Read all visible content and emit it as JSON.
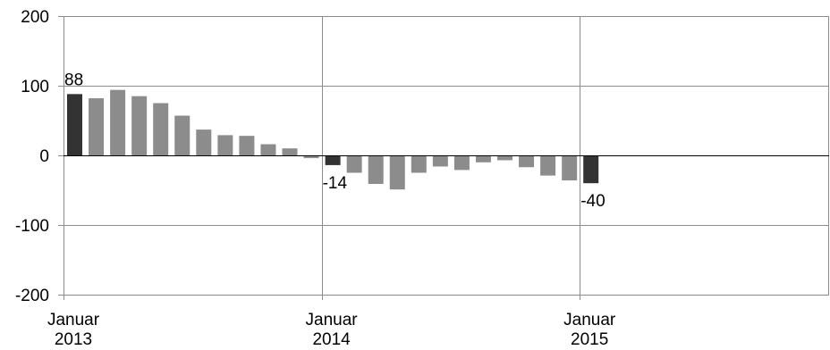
{
  "chart_data": {
    "type": "bar",
    "ylim": [
      -200,
      200
    ],
    "yticks": [
      -200,
      -100,
      0,
      100,
      200
    ],
    "ytick_labels": [
      "-200",
      "-100",
      "0",
      "100",
      "200"
    ],
    "x_tick_labels": [
      {
        "index": 0,
        "lines": [
          "Januar",
          "2013"
        ]
      },
      {
        "index": 12,
        "lines": [
          "Januar",
          "2014"
        ]
      },
      {
        "index": 24,
        "lines": [
          "Januar",
          "2015"
        ]
      }
    ],
    "values": [
      88,
      82,
      94,
      85,
      75,
      57,
      37,
      29,
      28,
      16,
      10,
      -4,
      -14,
      -25,
      -41,
      -49,
      -25,
      -16,
      -21,
      -10,
      -7,
      -17,
      -29,
      -36,
      -40
    ],
    "highlight_indices": [
      0,
      12,
      24
    ],
    "data_labels": [
      {
        "index": 0,
        "text": "88"
      },
      {
        "index": 12,
        "text": "-14"
      },
      {
        "index": 24,
        "text": "-40"
      }
    ],
    "grid": true,
    "title": "",
    "xlabel": "",
    "ylabel": "",
    "colors": {
      "highlight_bar": "#333333",
      "bar": "#8c8c8c",
      "grid": "#8c8c8c",
      "axis": "#8c8c8c"
    }
  }
}
